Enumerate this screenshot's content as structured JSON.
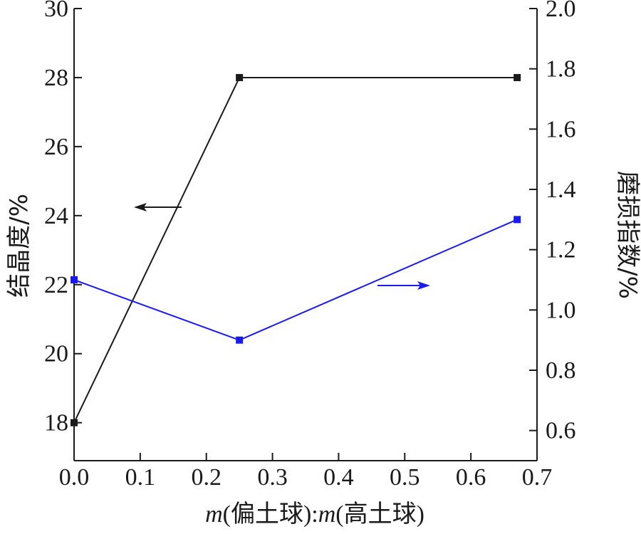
{
  "chart_data": {
    "type": "line",
    "x": [
      0.0,
      0.25,
      0.67
    ],
    "xlim": [
      0.0,
      0.7
    ],
    "xticks": [
      "0.0",
      "0.1",
      "0.2",
      "0.3",
      "0.4",
      "0.5",
      "0.6",
      "0.7"
    ],
    "xlabel_parts": {
      "var1": "m",
      "text1": "(偏土球):",
      "var2": "m",
      "text2": "(高土球)"
    },
    "y_left": {
      "label": "结晶度/%",
      "lim": [
        16.9,
        30
      ],
      "ticks": [
        "18",
        "20",
        "22",
        "24",
        "26",
        "28",
        "30"
      ]
    },
    "y_right": {
      "label": "磨损指数/%",
      "lim": [
        0.5,
        2.0
      ],
      "ticks": [
        "0.6",
        "0.8",
        "1.0",
        "1.2",
        "1.4",
        "1.6",
        "1.8",
        "2.0"
      ]
    },
    "series": [
      {
        "axis": "left",
        "color": "#1a1a1a",
        "marker": "square",
        "values": [
          18.0,
          28.0,
          28.0
        ]
      },
      {
        "axis": "right",
        "color": "#1a1aee",
        "marker": "square",
        "values": [
          1.1,
          0.9,
          1.3
        ]
      }
    ],
    "annotations": [
      {
        "type": "arrow",
        "direction": "left",
        "points_to_axis": "left",
        "color": "#1a1a1a"
      },
      {
        "type": "arrow",
        "direction": "right",
        "points_to_axis": "right",
        "color": "#1a1aee"
      }
    ],
    "grid": false,
    "legend": "none"
  }
}
